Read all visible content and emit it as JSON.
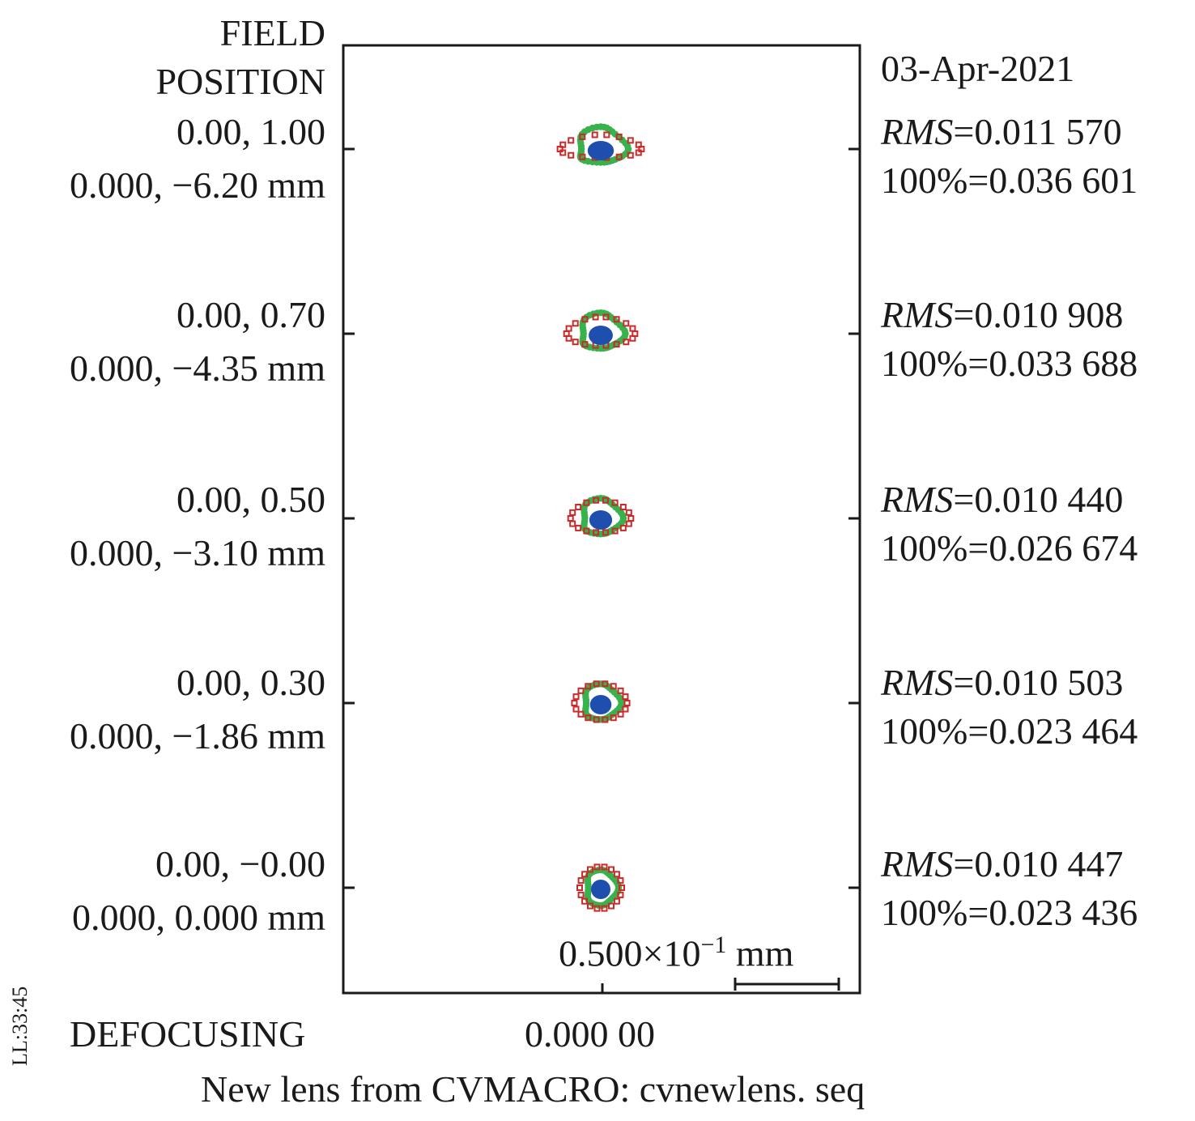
{
  "header": {
    "field_title_line1": "FIELD",
    "field_title_line2": "POSITION",
    "date": "03-Apr-2021"
  },
  "fields": [
    {
      "rel": "0.00, 1.00",
      "abs": "0.000, −6.20 mm",
      "rms_label": "RMS",
      "rms_value": "=0.011 570",
      "full_label": "100%=0.036 601"
    },
    {
      "rel": "0.00, 0.70",
      "abs": "0.000, −4.35 mm",
      "rms_label": "RMS",
      "rms_value": "=0.010 908",
      "full_label": "100%=0.033 688"
    },
    {
      "rel": "0.00, 0.50",
      "abs": "0.000, −3.10 mm",
      "rms_label": "RMS",
      "rms_value": "=0.010 440",
      "full_label": "100%=0.026 674"
    },
    {
      "rel": "0.00, 0.30",
      "abs": "0.000, −1.86 mm",
      "rms_label": "RMS",
      "rms_value": "=0.010 503",
      "full_label": "100%=0.023 464"
    },
    {
      "rel": "0.00, −0.00",
      "abs": "0.000, 0.000 mm",
      "rms_label": "RMS",
      "rms_value": "=0.010 447",
      "full_label": "100%=0.023 436"
    }
  ],
  "scale_bar": {
    "base": "0.500×10",
    "exp": "−1",
    "unit": " mm"
  },
  "footer": {
    "defocusing_label": "DEFOCUSING",
    "defocus_value": "0.000 00",
    "lens_title": "New lens from CVMACRO: cvnewlens. seq",
    "side_stamp": "LL:33:45"
  },
  "chart_data": {
    "type": "scatter",
    "title": "",
    "subtitle": "",
    "xlabel": "DEFOCUSING",
    "ylabel": "FIELD POSITION",
    "scale_bar_mm": 0.05,
    "grid": false,
    "legend": "none",
    "colors": {
      "frame": "#1a1a1a",
      "red": "#cc2a2a",
      "green": "#37b24d",
      "blue": "#1f4fae"
    },
    "series": [
      {
        "field_y_rel": 1.0,
        "image_height_mm": -6.2,
        "rms_mm": 0.01157,
        "full_mm": 0.036601
      },
      {
        "field_y_rel": 0.7,
        "image_height_mm": -4.35,
        "rms_mm": 0.010908,
        "full_mm": 0.033688
      },
      {
        "field_y_rel": 0.5,
        "image_height_mm": -3.1,
        "rms_mm": 0.01044,
        "full_mm": 0.026674
      },
      {
        "field_y_rel": 0.3,
        "image_height_mm": -1.86,
        "rms_mm": 0.010503,
        "full_mm": 0.023464
      },
      {
        "field_y_rel": 0.0,
        "image_height_mm": 0.0,
        "rms_mm": 0.010447,
        "full_mm": 0.023436
      }
    ]
  }
}
